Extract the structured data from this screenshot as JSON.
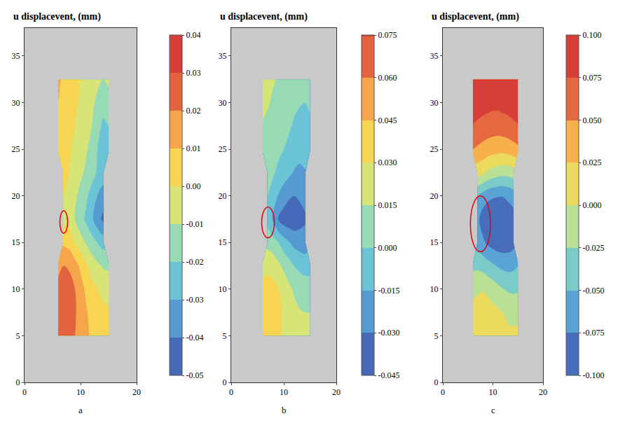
{
  "chart_data": [
    {
      "type": "contour",
      "title": "u displacevent, (mm)",
      "label": "a",
      "x": [
        6,
        7,
        8,
        9,
        10,
        11,
        12,
        13,
        14,
        15
      ],
      "y": [
        5,
        7.5,
        10,
        12.5,
        15,
        17.5,
        20,
        22.5,
        25,
        27.5,
        30,
        32.5
      ],
      "z": [
        [
          0.022,
          0.024,
          0.023,
          0.02,
          0.017,
          0.012,
          0.008,
          0.005,
          0.004,
          0.004
        ],
        [
          0.023,
          0.025,
          0.024,
          0.021,
          0.016,
          0.011,
          0.007,
          0.004,
          0.002,
          0.001
        ],
        [
          0.022,
          0.024,
          0.023,
          0.02,
          0.014,
          0.008,
          0.003,
          0.0,
          -0.002,
          -0.003
        ],
        [
          0.018,
          0.02,
          0.019,
          0.014,
          0.008,
          0.002,
          -0.004,
          -0.008,
          -0.011,
          -0.012
        ],
        [
          null,
          0.008,
          0.006,
          0.0,
          -0.006,
          -0.011,
          -0.016,
          -0.02,
          -0.024,
          null
        ],
        [
          null,
          -0.002,
          -0.005,
          -0.01,
          -0.016,
          -0.022,
          -0.028,
          -0.036,
          -0.042,
          null
        ],
        [
          null,
          0.0,
          -0.004,
          -0.008,
          -0.013,
          -0.018,
          -0.024,
          -0.03,
          -0.035,
          null
        ],
        [
          null,
          0.002,
          0.0,
          -0.004,
          -0.008,
          -0.012,
          -0.016,
          -0.021,
          -0.024,
          null
        ],
        [
          0.004,
          0.003,
          0.001,
          -0.002,
          -0.005,
          -0.009,
          -0.013,
          -0.02,
          -0.028,
          -0.025
        ],
        [
          0.006,
          0.004,
          0.002,
          0.0,
          -0.003,
          -0.006,
          -0.01,
          -0.016,
          -0.022,
          -0.02
        ],
        [
          0.01,
          0.006,
          0.003,
          0.001,
          -0.001,
          -0.004,
          -0.008,
          -0.012,
          -0.016,
          -0.014
        ],
        [
          0.012,
          0.008,
          0.004,
          0.002,
          0.0,
          -0.002,
          -0.005,
          -0.008,
          -0.01,
          -0.008
        ]
      ],
      "xlim": [
        0,
        20
      ],
      "xticks": [
        0,
        10,
        20
      ],
      "ylim": [
        0,
        38
      ],
      "yticks": [
        0,
        5,
        10,
        15,
        20,
        25,
        30,
        35
      ],
      "color_range": [
        -0.05,
        0.04
      ],
      "color_ticks": [
        -0.05,
        -0.04,
        -0.03,
        -0.02,
        -0.01,
        {
          "value": 0,
          "label": "0.00"
        },
        0.01,
        0.02,
        0.03,
        0.04
      ],
      "circle": {
        "x0": 6.3,
        "x1": 7.7,
        "y0": 16,
        "y1": 18.4
      }
    },
    {
      "type": "contour",
      "title": "u displacevent, (mm)",
      "label": "b",
      "x": [
        6,
        7,
        8,
        9,
        10,
        11,
        12,
        13,
        14,
        15
      ],
      "y": [
        5,
        7.5,
        10,
        12.5,
        15,
        17.5,
        20,
        22.5,
        25,
        27.5,
        30,
        32.5
      ],
      "z": [
        [
          0.035,
          0.038,
          0.036,
          0.032,
          0.028,
          0.024,
          0.02,
          0.018,
          0.017,
          0.017
        ],
        [
          0.036,
          0.04,
          0.038,
          0.033,
          0.028,
          0.023,
          0.019,
          0.016,
          0.015,
          0.015
        ],
        [
          0.034,
          0.036,
          0.034,
          0.03,
          0.024,
          0.018,
          0.013,
          0.01,
          0.008,
          0.008
        ],
        [
          0.025,
          0.026,
          0.024,
          0.018,
          0.012,
          0.006,
          0.0,
          -0.004,
          -0.006,
          -0.006
        ],
        [
          null,
          0.01,
          0.006,
          0.0,
          -0.008,
          -0.014,
          -0.02,
          -0.022,
          -0.024,
          null
        ],
        [
          null,
          -0.006,
          -0.018,
          -0.032,
          -0.038,
          -0.04,
          -0.04,
          -0.036,
          -0.032,
          null
        ],
        [
          null,
          0.0,
          -0.008,
          -0.016,
          -0.022,
          -0.028,
          -0.03,
          -0.028,
          -0.026,
          null
        ],
        [
          null,
          0.006,
          0.002,
          -0.004,
          -0.008,
          -0.012,
          -0.016,
          -0.018,
          -0.016,
          null
        ],
        [
          0.012,
          0.01,
          0.008,
          0.004,
          0.0,
          -0.004,
          -0.008,
          -0.01,
          -0.01,
          -0.008
        ],
        [
          0.014,
          0.012,
          0.01,
          0.008,
          0.005,
          0.002,
          -0.002,
          -0.004,
          -0.004,
          -0.002
        ],
        [
          0.018,
          0.016,
          0.013,
          0.011,
          0.009,
          0.006,
          0.003,
          0.001,
          0.0,
          0.002
        ],
        [
          0.02,
          0.018,
          0.016,
          0.014,
          0.012,
          0.01,
          0.008,
          0.006,
          0.006,
          0.008
        ]
      ],
      "xlim": [
        0,
        20
      ],
      "xticks": [
        0,
        10,
        20
      ],
      "ylim": [
        0,
        38
      ],
      "yticks": [
        0,
        5,
        10,
        15,
        20,
        25,
        30,
        35
      ],
      "color_range": [
        -0.045,
        0.075
      ],
      "color_ticks": [
        -0.045,
        {
          "value": -0.03,
          "label": "-0.030"
        },
        -0.015,
        {
          "value": 0,
          "label": "0.000"
        },
        0.015,
        {
          "value": 0.03,
          "label": "0.030"
        },
        0.045,
        {
          "value": 0.06,
          "label": "0.060"
        },
        0.075
      ],
      "circle": {
        "x0": 5.8,
        "x1": 8.2,
        "y0": 15.5,
        "y1": 18.8
      }
    },
    {
      "type": "contour",
      "title": "u displacevent, (mm)",
      "label": "c",
      "x": [
        6,
        7,
        8,
        9,
        10,
        11,
        12,
        13,
        14,
        15
      ],
      "y": [
        5,
        7.5,
        10,
        12.5,
        15,
        17.5,
        20,
        22.5,
        25,
        27.5,
        30,
        32.5
      ],
      "z": [
        [
          0.01,
          0.014,
          0.016,
          0.016,
          0.014,
          0.01,
          0.006,
          0.004,
          0.004,
          0.004
        ],
        [
          0.008,
          0.012,
          0.014,
          0.012,
          0.008,
          0.004,
          0.0,
          -0.004,
          -0.006,
          -0.004
        ],
        [
          -0.008,
          -0.004,
          -0.002,
          -0.006,
          -0.012,
          -0.018,
          -0.024,
          -0.028,
          -0.03,
          -0.028
        ],
        [
          -0.03,
          -0.03,
          -0.034,
          -0.04,
          -0.046,
          -0.052,
          -0.056,
          -0.058,
          -0.056,
          -0.05
        ],
        [
          null,
          -0.06,
          -0.07,
          -0.08,
          -0.086,
          -0.09,
          -0.09,
          -0.088,
          -0.084,
          null
        ],
        [
          null,
          -0.07,
          -0.088,
          -0.096,
          -0.098,
          -0.096,
          -0.094,
          -0.09,
          -0.086,
          null
        ],
        [
          null,
          -0.05,
          -0.06,
          -0.068,
          -0.072,
          -0.074,
          -0.074,
          -0.07,
          -0.064,
          null
        ],
        [
          null,
          0.01,
          0.004,
          -0.004,
          -0.01,
          -0.014,
          -0.016,
          -0.016,
          -0.012,
          null
        ],
        [
          0.05,
          0.046,
          0.042,
          0.038,
          0.036,
          0.034,
          0.034,
          0.036,
          0.04,
          0.044
        ],
        [
          0.074,
          0.07,
          0.066,
          0.064,
          0.062,
          0.062,
          0.064,
          0.066,
          0.07,
          0.074
        ],
        [
          0.09,
          0.088,
          0.086,
          0.084,
          0.082,
          0.082,
          0.084,
          0.086,
          0.088,
          0.09
        ],
        [
          0.094,
          0.092,
          0.09,
          0.09,
          0.088,
          0.088,
          0.09,
          0.092,
          0.094,
          0.094
        ]
      ],
      "xlim": [
        0,
        20
      ],
      "xticks": [
        0,
        10,
        20
      ],
      "ylim": [
        0,
        38
      ],
      "yticks": [
        0,
        5,
        10,
        15,
        20,
        25,
        30,
        35
      ],
      "color_range": [
        -0.1,
        0.1
      ],
      "color_ticks": [
        {
          "value": -0.1,
          "label": "-0.100"
        },
        -0.075,
        {
          "value": -0.05,
          "label": "-0.050"
        },
        -0.025,
        {
          "value": 0,
          "label": "0.000"
        },
        0.025,
        {
          "value": 0.05,
          "label": "0.050"
        },
        0.075,
        {
          "value": 0.1,
          "label": "0.100"
        }
      ],
      "circle": {
        "x0": 5.5,
        "x1": 9.5,
        "y0": 14,
        "y1": 20
      }
    }
  ]
}
